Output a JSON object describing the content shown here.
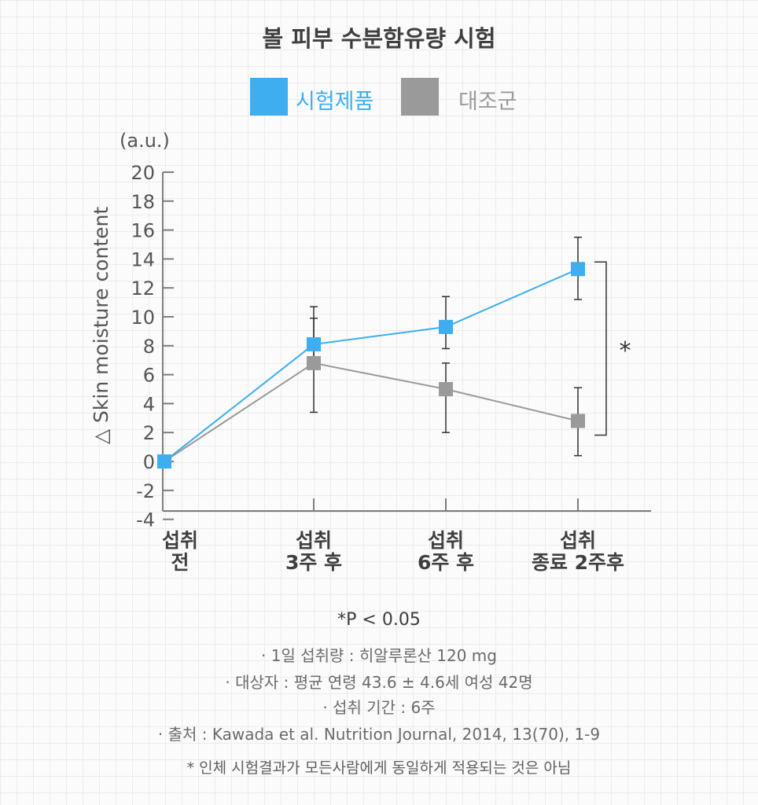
{
  "chart_data": {
    "type": "line",
    "title": "볼 피부 수분함유량 시험",
    "ylabel": "△ Skin moisture content",
    "yunit": "(a.u.)",
    "ylim": [
      -4,
      20
    ],
    "yticks": [
      20,
      18,
      16,
      14,
      12,
      10,
      8,
      6,
      4,
      2,
      0,
      -2,
      -4
    ],
    "categories": [
      {
        "line1": "섭취",
        "line2": "전"
      },
      {
        "line1": "섭취",
        "line2": "3주 후"
      },
      {
        "line1": "섭취",
        "line2": "6주 후"
      },
      {
        "line1": "섭취",
        "line2": "종료 2주후"
      }
    ],
    "series": [
      {
        "name": "시험제품",
        "color": "#3eaef0",
        "values": [
          0,
          8.1,
          9.3,
          13.3
        ],
        "err_low": [
          null,
          6.8,
          7.8,
          11.2
        ],
        "err_high": [
          null,
          9.9,
          11.4,
          15.5
        ]
      },
      {
        "name": "대조군",
        "color": "#9a9a9a",
        "values": [
          0,
          6.8,
          5.0,
          2.8
        ],
        "err_low": [
          null,
          3.4,
          2.0,
          0.4
        ],
        "err_high": [
          null,
          10.7,
          6.8,
          5.1
        ]
      }
    ],
    "significance": {
      "label": "*",
      "from": 13.3,
      "to": 2.8
    },
    "legend": "top",
    "grid": false
  },
  "footer": {
    "pvalue": "*P < 0.05",
    "note1": "· 1일 섭취량 : 히알루론산 120 mg",
    "note2": "· 대상자 : 평균 연령 43.6 ± 4.6세 여성 42명",
    "note3": "· 섭취 기간 : 6주",
    "note4": "· 출처 : Kawada et al. Nutrition Journal, 2014, 13(70), 1-9",
    "disclaimer": "* 인체 시험결과가 모든사람에게 동일하게 적용되는 것은 아님"
  }
}
